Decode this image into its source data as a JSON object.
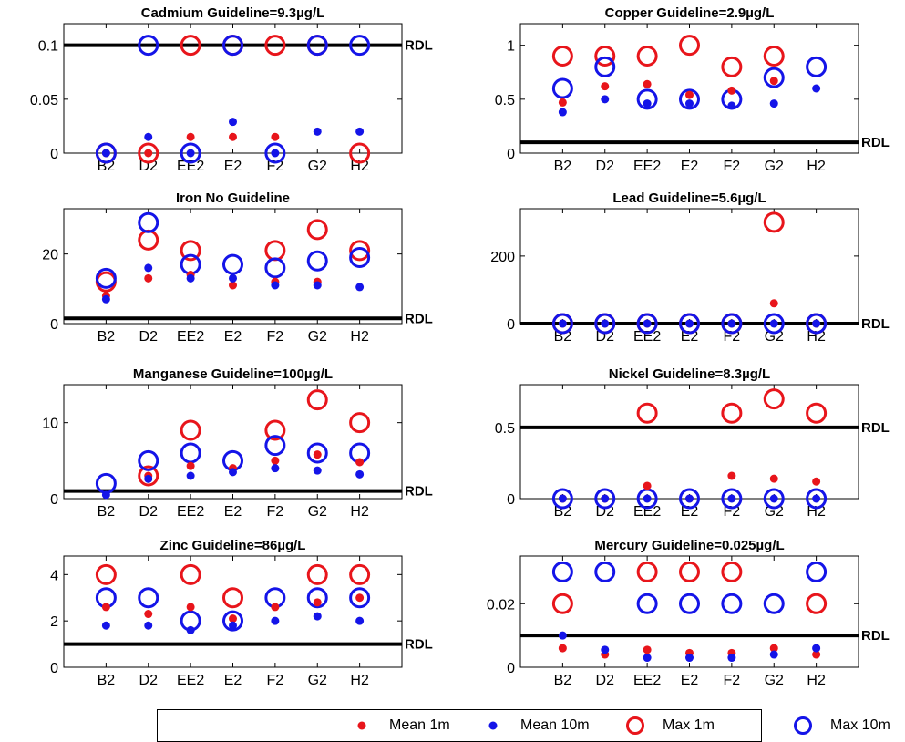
{
  "chart_data": {
    "type": "scatter",
    "categories": [
      "B2",
      "D2",
      "EE2",
      "E2",
      "F2",
      "G2",
      "H2"
    ],
    "legend": {
      "placement": "bottom",
      "entries": [
        {
          "key": "mean_1m",
          "label": "Mean 1m",
          "color": "#e8151b",
          "marker": "dot"
        },
        {
          "key": "mean_10m",
          "label": "Mean 10m",
          "color": "#1414e8",
          "marker": "dot"
        },
        {
          "key": "max_1m",
          "label": "Max 1m",
          "color": "#e8151b",
          "marker": "circle"
        },
        {
          "key": "max_10m",
          "label": "Max 10m",
          "color": "#1414e8",
          "marker": "circle"
        }
      ]
    },
    "panels": [
      {
        "id": "cadmium",
        "title": "Cadmium  Guideline=9.3µg/L",
        "ylim": [
          0,
          0.12
        ],
        "yticks": [
          0,
          0.05,
          0.1
        ],
        "ytick_labels": [
          "0",
          "0.05",
          "0.1"
        ],
        "rdl": 0.1,
        "rdl_label": "RDL",
        "series": {
          "mean_1m": [
            0,
            0,
            0.015,
            0.015,
            0.015,
            null,
            null
          ],
          "mean_10m": [
            0,
            0.015,
            0,
            0.029,
            0,
            0.02,
            0.02
          ],
          "max_1m": [
            0,
            0,
            0.1,
            0.1,
            0.1,
            0.1,
            0
          ],
          "max_10m": [
            0,
            0.1,
            0,
            0.1,
            0,
            0.1,
            0.1
          ]
        }
      },
      {
        "id": "copper",
        "title": "Copper  Guideline=2.9µg/L",
        "ylim": [
          0,
          1.2
        ],
        "yticks": [
          0,
          0.5,
          1
        ],
        "ytick_labels": [
          "0",
          "0.5",
          "1"
        ],
        "rdl": 0.1,
        "rdl_label": "RDL",
        "series": {
          "mean_1m": [
            0.47,
            0.62,
            0.64,
            0.54,
            0.58,
            0.67,
            null
          ],
          "mean_10m": [
            0.38,
            0.5,
            0.46,
            0.46,
            0.44,
            0.46,
            0.6
          ],
          "max_1m": [
            0.9,
            0.9,
            0.9,
            1.0,
            0.8,
            0.9,
            null
          ],
          "max_10m": [
            0.6,
            0.8,
            0.5,
            0.5,
            0.5,
            0.7,
            0.8
          ]
        }
      },
      {
        "id": "iron",
        "title": "Iron No Guideline",
        "ylim": [
          0,
          33
        ],
        "yticks": [
          0,
          20
        ],
        "ytick_labels": [
          "0",
          "20"
        ],
        "rdl": 1.5,
        "rdl_label": "RDL",
        "series": {
          "mean_1m": [
            8,
            13,
            14,
            11,
            12,
            12,
            null
          ],
          "mean_10m": [
            7,
            16,
            13,
            13,
            11,
            11,
            10.5
          ],
          "max_1m": [
            12,
            24,
            21,
            null,
            21,
            27,
            21
          ],
          "max_10m": [
            13,
            29,
            17,
            17,
            16,
            18,
            19
          ]
        }
      },
      {
        "id": "lead",
        "title": "Lead  Guideline=5.6µg/L",
        "ylim": [
          0,
          340
        ],
        "yticks": [
          0,
          200
        ],
        "ytick_labels": [
          "0",
          "200"
        ],
        "rdl": 0,
        "rdl_label": "RDL",
        "series": {
          "mean_1m": [
            0,
            0,
            0,
            0,
            0,
            60,
            0
          ],
          "mean_10m": [
            0,
            0,
            0,
            0,
            0,
            0,
            0
          ],
          "max_1m": [
            0,
            0,
            0,
            0,
            0,
            300,
            0
          ],
          "max_10m": [
            0,
            0,
            0,
            0,
            0,
            0,
            0
          ]
        }
      },
      {
        "id": "manganese",
        "title": "Manganese  Guideline=100µg/L",
        "ylim": [
          0,
          15
        ],
        "yticks": [
          0,
          10
        ],
        "ytick_labels": [
          "0",
          "10"
        ],
        "rdl": 1,
        "rdl_label": "RDL",
        "series": {
          "mean_1m": [
            null,
            3,
            4.3,
            4,
            5,
            5.8,
            4.8
          ],
          "mean_10m": [
            0.5,
            2.6,
            3,
            3.5,
            4,
            3.7,
            3.2
          ],
          "max_1m": [
            null,
            3,
            9,
            null,
            9,
            13,
            10
          ],
          "max_10m": [
            2,
            5,
            6,
            5,
            7,
            6,
            6
          ]
        }
      },
      {
        "id": "nickel",
        "title": "Nickel  Guideline=8.3µg/L",
        "ylim": [
          0,
          0.8
        ],
        "yticks": [
          0,
          0.5
        ],
        "ytick_labels": [
          "0",
          "0.5"
        ],
        "rdl": 0.5,
        "rdl_label": "RDL",
        "series": {
          "mean_1m": [
            0,
            0,
            0.09,
            0,
            0.16,
            0.14,
            0.12
          ],
          "mean_10m": [
            0,
            0,
            0,
            0,
            0,
            0,
            0
          ],
          "max_1m": [
            null,
            null,
            0.6,
            null,
            0.6,
            0.7,
            0.6
          ],
          "max_10m": [
            0,
            0,
            0,
            0,
            0,
            0,
            0
          ]
        }
      },
      {
        "id": "zinc",
        "title": "Zinc  Guideline=86µg/L",
        "ylim": [
          0,
          4.8
        ],
        "yticks": [
          0,
          2,
          4
        ],
        "ytick_labels": [
          "0",
          "2",
          "4"
        ],
        "rdl": 1,
        "rdl_label": "RDL",
        "series": {
          "mean_1m": [
            2.6,
            2.3,
            2.6,
            2.1,
            2.6,
            2.8,
            3
          ],
          "mean_10m": [
            1.8,
            1.8,
            1.6,
            1.8,
            2,
            2.2,
            2
          ],
          "max_1m": [
            4,
            null,
            4,
            3,
            null,
            4,
            4
          ],
          "max_10m": [
            3,
            3,
            2,
            2,
            3,
            3,
            3
          ]
        }
      },
      {
        "id": "mercury",
        "title": "Mercury  Guideline=0.025µg/L",
        "ylim": [
          0,
          0.035
        ],
        "yticks": [
          0,
          0.02
        ],
        "ytick_labels": [
          "0",
          "0.02"
        ],
        "rdl": 0.01,
        "rdl_label": "RDL",
        "series": {
          "mean_1m": [
            0.006,
            0.004,
            0.0055,
            0.0045,
            0.0045,
            0.006,
            0.004
          ],
          "mean_10m": [
            0.01,
            0.0055,
            0.003,
            0.003,
            0.003,
            0.004,
            0.006
          ],
          "max_1m": [
            0.02,
            null,
            0.03,
            0.03,
            0.03,
            null,
            0.02
          ],
          "max_10m": [
            0.03,
            0.03,
            0.02,
            0.02,
            0.02,
            0.02,
            0.03
          ]
        }
      }
    ]
  }
}
